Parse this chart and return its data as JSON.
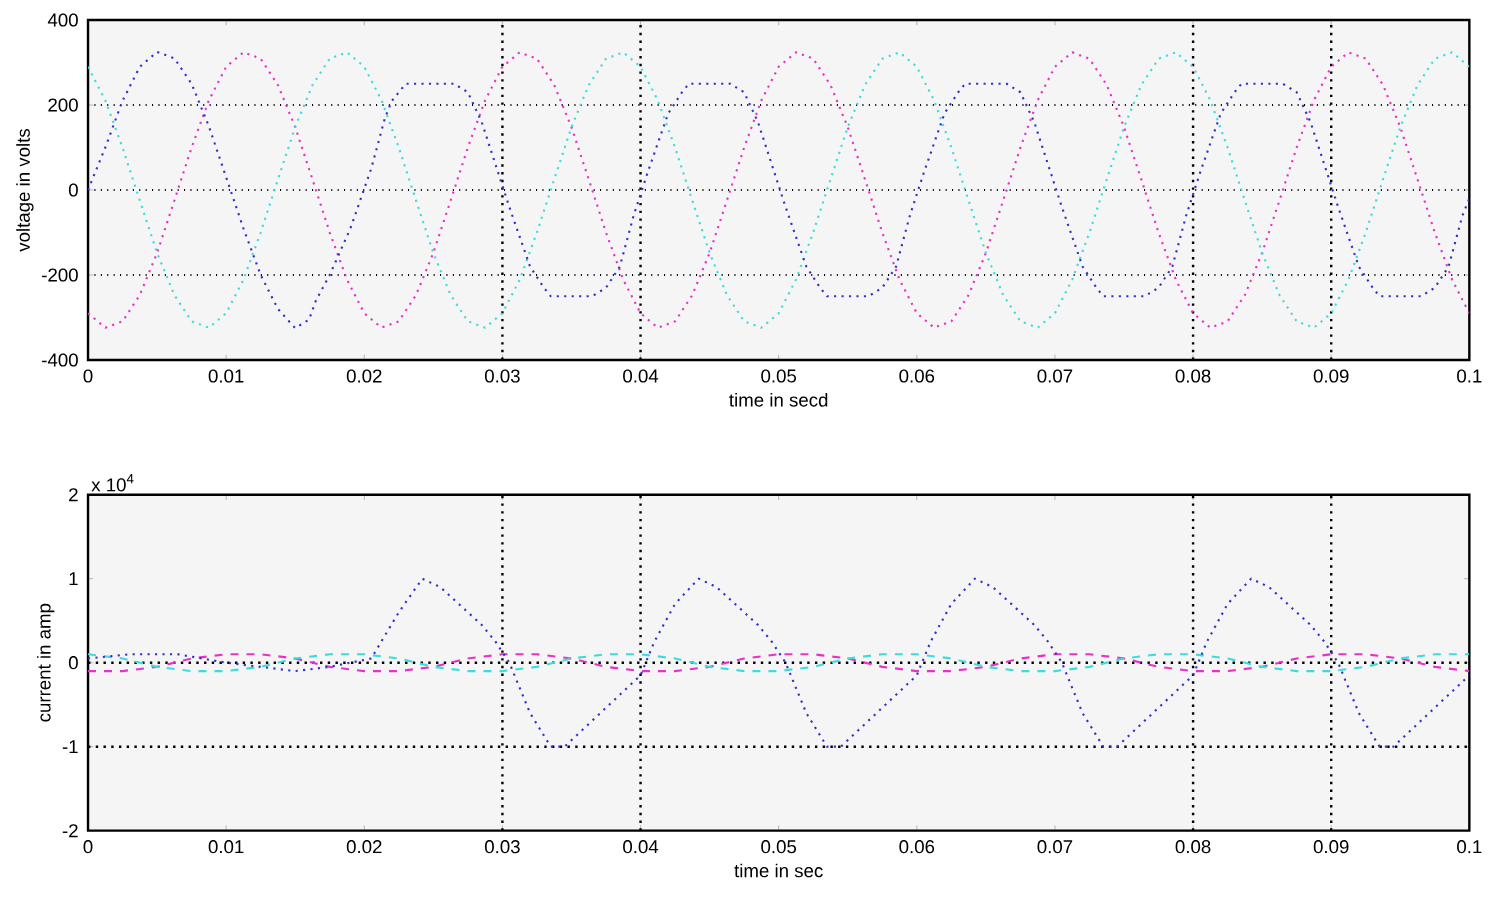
{
  "chart_data": [
    {
      "type": "line",
      "xlabel": "time in secd",
      "ylabel": "voltage in volts",
      "xlim": [
        0,
        0.1
      ],
      "ylim": [
        -400,
        400
      ],
      "xticks": [
        0,
        0.01,
        0.02,
        0.03,
        0.04,
        0.05,
        0.06,
        0.07,
        0.08,
        0.09,
        0.1
      ],
      "yticks": [
        -400,
        -200,
        0,
        200,
        400
      ],
      "grid": "y",
      "ref_lines": [
        {
          "axis": "x",
          "value": 0.03,
          "color": "#000000"
        },
        {
          "axis": "x",
          "value": 0.04,
          "color": "#000000"
        },
        {
          "axis": "x",
          "value": 0.08,
          "color": "#000000"
        },
        {
          "axis": "x",
          "value": 0.09,
          "color": "#000000"
        }
      ],
      "x": [
        0,
        0.00125,
        0.0025,
        0.00375,
        0.005,
        0.00625,
        0.0075,
        0.00875,
        0.01,
        0.01125,
        0.0125,
        0.01375,
        0.015,
        0.01625,
        0.0175,
        0.01875,
        0.02,
        0.02125,
        0.0225,
        0.02375,
        0.025,
        0.02625,
        0.0275,
        0.02875,
        0.03,
        0.03125,
        0.0325,
        0.03375,
        0.035,
        0.03625,
        0.0375,
        0.03875,
        0.04,
        0.04125,
        0.0425,
        0.04375,
        0.045,
        0.04625,
        0.0475,
        0.04875,
        0.05,
        0.05125,
        0.0525,
        0.05375,
        0.055,
        0.05625,
        0.0575,
        0.05875,
        0.06,
        0.06125,
        0.0625,
        0.06375,
        0.065,
        0.06625,
        0.0675,
        0.06875,
        0.07,
        0.07125,
        0.0725,
        0.07375,
        0.075,
        0.07625,
        0.0775,
        0.07875,
        0.08,
        0.08125,
        0.0825,
        0.08375,
        0.085,
        0.08625,
        0.0875,
        0.08875,
        0.09,
        0.09125,
        0.0925,
        0.09375,
        0.095,
        0.09625,
        0.0975,
        0.09875,
        0.1
      ],
      "series": [
        {
          "color": "#e632c8",
          "line_style": "dotted",
          "values": [
            -290,
            -324,
            -309,
            -247,
            -148,
            -25,
            100,
            211,
            290,
            324,
            309,
            247,
            148,
            25,
            -100,
            -211,
            -290,
            -324,
            -309,
            -247,
            -148,
            -25,
            100,
            211,
            290,
            324,
            309,
            247,
            148,
            25,
            -100,
            -211,
            -290,
            -324,
            -309,
            -247,
            -148,
            -25,
            100,
            211,
            290,
            324,
            309,
            247,
            148,
            25,
            -100,
            -211,
            -290,
            -324,
            -309,
            -247,
            -148,
            -25,
            100,
            211,
            290,
            324,
            309,
            247,
            148,
            25,
            -100,
            -211,
            -290,
            -324,
            -309,
            -247,
            -148,
            -25,
            100,
            211,
            290,
            324,
            309,
            247,
            148,
            25,
            -100,
            -211,
            -290
          ]
        },
        {
          "color": "#3cdcdc",
          "line_style": "dotted",
          "values": [
            290,
            211,
            100,
            -25,
            -148,
            -247,
            -309,
            -324,
            -290,
            -211,
            -100,
            25,
            148,
            247,
            309,
            324,
            290,
            211,
            100,
            -25,
            -148,
            -247,
            -309,
            -324,
            -290,
            -211,
            -100,
            25,
            148,
            247,
            309,
            324,
            290,
            211,
            100,
            -25,
            -148,
            -247,
            -309,
            -324,
            -290,
            -211,
            -100,
            25,
            148,
            247,
            309,
            324,
            290,
            211,
            100,
            -25,
            -148,
            -247,
            -309,
            -324,
            -290,
            -211,
            -100,
            25,
            148,
            247,
            309,
            324,
            290,
            211,
            100,
            -25,
            -148,
            -247,
            -309,
            -324,
            -290,
            -211,
            -100,
            25,
            148,
            247,
            309,
            324,
            290
          ]
        },
        {
          "color": "#3232c8",
          "line_style": "dotted",
          "x": [
            0,
            0.00125,
            0.0025,
            0.00375,
            0.005,
            0.00625,
            0.0075,
            0.00875,
            0.01,
            0.01125,
            0.0125,
            0.01375,
            0.015,
            0.016,
            0.0165,
            0.0175,
            0.019,
            0.0205,
            0.0215,
            0.022,
            0.023,
            0.0265,
            0.0275,
            0.0285,
            0.0295,
            0.0305,
            0.032,
            0.033,
            0.0335,
            0.0365,
            0.0375,
            0.0385,
            0.0395,
            0.0405,
            0.042,
            0.043,
            0.0435,
            0.0465,
            0.0475,
            0.0485,
            0.0495,
            0.0505,
            0.052,
            0.053,
            0.0535,
            0.0565,
            0.0575,
            0.0585,
            0.0595,
            0.0605,
            0.062,
            0.063,
            0.0635,
            0.0665,
            0.0675,
            0.0685,
            0.0695,
            0.0705,
            0.072,
            0.073,
            0.0735,
            0.0765,
            0.0775,
            0.0785,
            0.0795,
            0.0805,
            0.082,
            0.083,
            0.0835,
            0.0865,
            0.0875,
            0.0885,
            0.0895,
            0.0905,
            0.092,
            0.093,
            0.0935,
            0.0965,
            0.0975,
            0.0985,
            0.0995,
            0.1
          ],
          "values": [
            0,
            100,
            210,
            290,
            325,
            310,
            250,
            150,
            30,
            -90,
            -200,
            -280,
            -325,
            -305,
            -260,
            -200,
            -90,
            50,
            170,
            210,
            250,
            250,
            230,
            160,
            60,
            -40,
            -180,
            -230,
            -250,
            -250,
            -230,
            -180,
            -60,
            40,
            180,
            230,
            250,
            250,
            230,
            160,
            60,
            -40,
            -180,
            -230,
            -250,
            -250,
            -230,
            -180,
            -60,
            40,
            180,
            230,
            250,
            250,
            230,
            160,
            60,
            -40,
            -180,
            -230,
            -250,
            -250,
            -230,
            -180,
            -60,
            40,
            180,
            230,
            250,
            250,
            230,
            160,
            60,
            -40,
            -180,
            -230,
            -250,
            -250,
            -230,
            -180,
            -60,
            -20
          ]
        }
      ]
    },
    {
      "type": "line",
      "xlabel": "time in sec",
      "ylabel": "current in amp",
      "xlim": [
        0,
        0.1
      ],
      "ylim": [
        -2,
        2
      ],
      "xticks": [
        0,
        0.01,
        0.02,
        0.03,
        0.04,
        0.05,
        0.06,
        0.07,
        0.08,
        0.09,
        0.1
      ],
      "yticks": [
        -2,
        -1,
        0,
        1,
        2
      ],
      "annotations": [
        "x 10$^{4}$"
      ],
      "ref_lines": [
        {
          "axis": "x",
          "value": 0.03,
          "color": "#000000"
        },
        {
          "axis": "x",
          "value": 0.04,
          "color": "#000000"
        },
        {
          "axis": "x",
          "value": 0.08,
          "color": "#000000"
        },
        {
          "axis": "x",
          "value": 0.09,
          "color": "#000000"
        },
        {
          "axis": "y",
          "value": 0,
          "color": "#000000"
        },
        {
          "axis": "y",
          "value": -1,
          "color": "#000000"
        }
      ],
      "x": [
        0,
        0.0025,
        0.005,
        0.0075,
        0.01,
        0.0125,
        0.015,
        0.0175,
        0.02,
        0.0225,
        0.025,
        0.0275,
        0.03,
        0.0325,
        0.035,
        0.0375,
        0.04,
        0.0425,
        0.045,
        0.0475,
        0.05,
        0.0525,
        0.055,
        0.0575,
        0.06,
        0.0625,
        0.065,
        0.0675,
        0.07,
        0.0725,
        0.075,
        0.0775,
        0.08,
        0.0825,
        0.085,
        0.0875,
        0.09,
        0.0925,
        0.095,
        0.0975,
        0.1
      ],
      "series": [
        {
          "color": "#e632c8",
          "line_style": "dashed",
          "values": [
            -0.1,
            -0.1,
            -0.05,
            0.05,
            0.1,
            0.1,
            0.05,
            -0.05,
            -0.1,
            -0.1,
            -0.05,
            0.05,
            0.1,
            0.1,
            0.05,
            -0.05,
            -0.1,
            -0.1,
            -0.05,
            0.05,
            0.1,
            0.1,
            0.05,
            -0.05,
            -0.1,
            -0.1,
            -0.05,
            0.05,
            0.1,
            0.1,
            0.05,
            -0.05,
            -0.1,
            -0.1,
            -0.05,
            0.05,
            0.1,
            0.1,
            0.05,
            -0.05,
            -0.1
          ]
        },
        {
          "color": "#3cdcdc",
          "line_style": "dashed",
          "values": [
            0.1,
            0.05,
            -0.05,
            -0.1,
            -0.1,
            -0.05,
            0.05,
            0.1,
            0.1,
            0.05,
            -0.05,
            -0.1,
            -0.1,
            -0.05,
            0.05,
            0.1,
            0.1,
            0.05,
            -0.05,
            -0.1,
            -0.1,
            -0.05,
            0.05,
            0.1,
            0.1,
            0.05,
            -0.05,
            -0.1,
            -0.1,
            -0.05,
            0.05,
            0.1,
            0.1,
            0.05,
            -0.05,
            -0.1,
            -0.1,
            -0.05,
            0.05,
            0.1,
            0.1
          ]
        },
        {
          "color": "#3232c8",
          "line_style": "dotted",
          "x": [
            0,
            0.003,
            0.0065,
            0.01,
            0.0125,
            0.015,
            0.0175,
            0.0205,
            0.0225,
            0.0242,
            0.0255,
            0.0285,
            0.0295,
            0.0305,
            0.032,
            0.0335,
            0.0345,
            0.04,
            0.041,
            0.0425,
            0.0442,
            0.0455,
            0.0485,
            0.0495,
            0.0505,
            0.052,
            0.0535,
            0.0545,
            0.06,
            0.061,
            0.0625,
            0.0642,
            0.0655,
            0.0685,
            0.0695,
            0.0705,
            0.072,
            0.0735,
            0.0745,
            0.08,
            0.081,
            0.0825,
            0.0842,
            0.0855,
            0.0885,
            0.0895,
            0.0905,
            0.092,
            0.0935,
            0.0945,
            0.1
          ],
          "values": [
            0.05,
            0.1,
            0.1,
            0,
            -0.05,
            -0.1,
            -0.05,
            0.05,
            0.6,
            1,
            0.9,
            0.45,
            0.25,
            0,
            -0.6,
            -1,
            -1,
            -0.15,
            0.25,
            0.7,
            1,
            0.9,
            0.45,
            0.25,
            0,
            -0.6,
            -1,
            -1,
            -0.15,
            0.25,
            0.7,
            1,
            0.9,
            0.45,
            0.25,
            0,
            -0.6,
            -1,
            -1,
            -0.15,
            0.25,
            0.7,
            1,
            0.9,
            0.45,
            0.25,
            0,
            -0.6,
            -1,
            -1,
            -0.15
          ]
        }
      ]
    }
  ]
}
